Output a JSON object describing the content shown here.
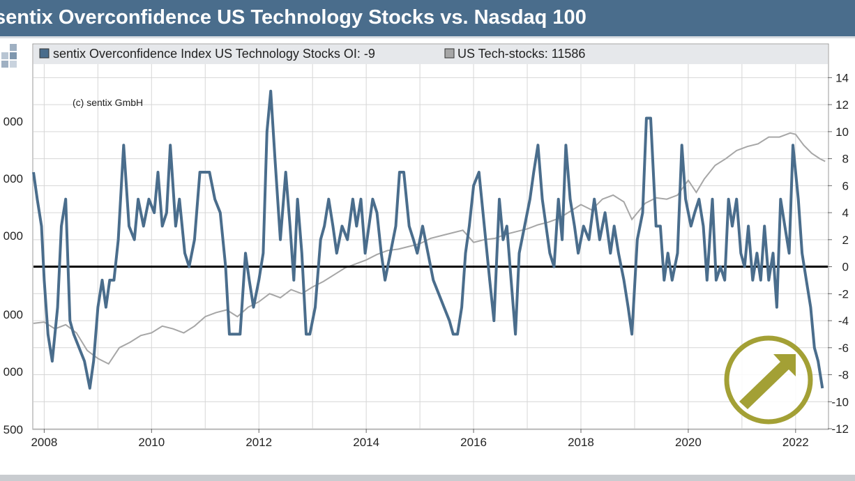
{
  "title": "sentix Overconfidence US Technology Stocks vs. Nasdaq 100",
  "copyright": "(c) sentix GmbH",
  "legend": [
    {
      "label": "sentix Overconfidence Index US Technology Stocks OI: -9",
      "color": "#4a6d8c"
    },
    {
      "label": "US Tech-stocks: 11586",
      "color": "#a6a6a6"
    }
  ],
  "colors": {
    "title_bg": "#4a6d8c",
    "oi_line": "#4a6d8c",
    "tech_line": "#a6a6a6",
    "zero_line": "#000000",
    "arrow": "#a3a035"
  },
  "icon_names": [
    "logo-squares-icon",
    "arrow-circle-icon"
  ],
  "chart_data": {
    "type": "line",
    "x_ticks": [
      "2008",
      "2010",
      "2012",
      "2014",
      "2016",
      "2018",
      "2020",
      "2022"
    ],
    "xlim": [
      2007.8,
      2022.6
    ],
    "y_right_ticks": [
      "14",
      "12",
      "10",
      "8",
      "6",
      "4",
      "2",
      "0",
      "-2",
      "-4",
      "-6",
      "-8",
      "-10",
      "-12"
    ],
    "y_right_lim": [
      -12,
      15
    ],
    "y_left_ticks": [
      "000",
      "000",
      "000",
      "000",
      "000",
      "500"
    ],
    "grid": true,
    "legend_position": "top",
    "series": [
      {
        "name": "sentix Overconfidence Index US Technology Stocks OI",
        "axis": "right",
        "points": [
          [
            2007.8,
            7
          ],
          [
            2007.87,
            5
          ],
          [
            2007.95,
            3
          ],
          [
            2008.0,
            -1
          ],
          [
            2008.07,
            -5
          ],
          [
            2008.15,
            -7
          ],
          [
            2008.25,
            -3
          ],
          [
            2008.32,
            3
          ],
          [
            2008.4,
            5
          ],
          [
            2008.48,
            -4
          ],
          [
            2008.55,
            -5
          ],
          [
            2008.65,
            -6
          ],
          [
            2008.75,
            -7
          ],
          [
            2008.85,
            -9
          ],
          [
            2008.92,
            -7
          ],
          [
            2009.0,
            -3
          ],
          [
            2009.08,
            -1
          ],
          [
            2009.15,
            -3
          ],
          [
            2009.22,
            -1
          ],
          [
            2009.3,
            -1
          ],
          [
            2009.38,
            2
          ],
          [
            2009.48,
            9
          ],
          [
            2009.58,
            3
          ],
          [
            2009.68,
            2
          ],
          [
            2009.75,
            5
          ],
          [
            2009.85,
            3
          ],
          [
            2009.95,
            5
          ],
          [
            2010.05,
            4
          ],
          [
            2010.12,
            7
          ],
          [
            2010.2,
            3
          ],
          [
            2010.28,
            4
          ],
          [
            2010.35,
            9
          ],
          [
            2010.45,
            3
          ],
          [
            2010.52,
            5
          ],
          [
            2010.62,
            1
          ],
          [
            2010.7,
            0
          ],
          [
            2010.8,
            2
          ],
          [
            2010.9,
            7
          ],
          [
            2011.0,
            7
          ],
          [
            2011.08,
            7
          ],
          [
            2011.18,
            5
          ],
          [
            2011.28,
            4
          ],
          [
            2011.38,
            0
          ],
          [
            2011.45,
            -5
          ],
          [
            2011.55,
            -5
          ],
          [
            2011.65,
            -5
          ],
          [
            2011.75,
            1
          ],
          [
            2011.82,
            -1
          ],
          [
            2011.9,
            -3
          ],
          [
            2012.0,
            -1
          ],
          [
            2012.08,
            1
          ],
          [
            2012.15,
            10
          ],
          [
            2012.22,
            13
          ],
          [
            2012.3,
            8
          ],
          [
            2012.4,
            2
          ],
          [
            2012.5,
            7
          ],
          [
            2012.58,
            3
          ],
          [
            2012.65,
            -1
          ],
          [
            2012.72,
            5
          ],
          [
            2012.8,
            1
          ],
          [
            2012.88,
            -5
          ],
          [
            2012.95,
            -5
          ],
          [
            2013.05,
            -3
          ],
          [
            2013.15,
            2
          ],
          [
            2013.22,
            3
          ],
          [
            2013.3,
            5
          ],
          [
            2013.38,
            3
          ],
          [
            2013.45,
            1
          ],
          [
            2013.55,
            3
          ],
          [
            2013.65,
            2
          ],
          [
            2013.75,
            5
          ],
          [
            2013.82,
            3
          ],
          [
            2013.9,
            5
          ],
          [
            2013.98,
            1
          ],
          [
            2014.05,
            3
          ],
          [
            2014.12,
            5
          ],
          [
            2014.2,
            4
          ],
          [
            2014.28,
            1
          ],
          [
            2014.35,
            -1
          ],
          [
            2014.45,
            1
          ],
          [
            2014.55,
            3
          ],
          [
            2014.62,
            7
          ],
          [
            2014.7,
            7
          ],
          [
            2014.8,
            3
          ],
          [
            2014.88,
            2
          ],
          [
            2014.95,
            1
          ],
          [
            2015.05,
            3
          ],
          [
            2015.15,
            1
          ],
          [
            2015.25,
            -1
          ],
          [
            2015.35,
            -2
          ],
          [
            2015.45,
            -3
          ],
          [
            2015.55,
            -4
          ],
          [
            2015.62,
            -5
          ],
          [
            2015.7,
            -5
          ],
          [
            2015.78,
            -3
          ],
          [
            2015.85,
            1
          ],
          [
            2015.92,
            3
          ],
          [
            2016.0,
            6
          ],
          [
            2016.1,
            7
          ],
          [
            2016.2,
            3
          ],
          [
            2016.3,
            -1
          ],
          [
            2016.38,
            -4
          ],
          [
            2016.48,
            5
          ],
          [
            2016.55,
            2
          ],
          [
            2016.62,
            3
          ],
          [
            2016.7,
            -1
          ],
          [
            2016.78,
            -5
          ],
          [
            2016.85,
            1
          ],
          [
            2016.95,
            3
          ],
          [
            2017.05,
            5
          ],
          [
            2017.12,
            7
          ],
          [
            2017.2,
            9
          ],
          [
            2017.28,
            5
          ],
          [
            2017.35,
            3
          ],
          [
            2017.42,
            1
          ],
          [
            2017.5,
            0
          ],
          [
            2017.58,
            5
          ],
          [
            2017.65,
            2
          ],
          [
            2017.72,
            9
          ],
          [
            2017.8,
            5
          ],
          [
            2017.88,
            3
          ],
          [
            2017.95,
            1
          ],
          [
            2018.05,
            3
          ],
          [
            2018.15,
            2
          ],
          [
            2018.25,
            5
          ],
          [
            2018.35,
            2
          ],
          [
            2018.45,
            4
          ],
          [
            2018.55,
            1
          ],
          [
            2018.62,
            3
          ],
          [
            2018.7,
            1
          ],
          [
            2018.8,
            -1
          ],
          [
            2018.88,
            -3
          ],
          [
            2018.95,
            -5
          ],
          [
            2019.05,
            2
          ],
          [
            2019.15,
            4
          ],
          [
            2019.22,
            11
          ],
          [
            2019.3,
            11
          ],
          [
            2019.4,
            3
          ],
          [
            2019.48,
            3
          ],
          [
            2019.55,
            -1
          ],
          [
            2019.62,
            1
          ],
          [
            2019.7,
            -1
          ],
          [
            2019.8,
            1
          ],
          [
            2019.88,
            9
          ],
          [
            2019.95,
            5
          ],
          [
            2020.05,
            3
          ],
          [
            2020.12,
            4
          ],
          [
            2020.2,
            5
          ],
          [
            2020.28,
            3
          ],
          [
            2020.35,
            -1
          ],
          [
            2020.45,
            5
          ],
          [
            2020.52,
            -1
          ],
          [
            2020.6,
            0
          ],
          [
            2020.68,
            -1
          ],
          [
            2020.75,
            5
          ],
          [
            2020.82,
            3
          ],
          [
            2020.9,
            5
          ],
          [
            2020.98,
            1
          ],
          [
            2021.05,
            0
          ],
          [
            2021.12,
            3
          ],
          [
            2021.2,
            -1
          ],
          [
            2021.28,
            1
          ],
          [
            2021.35,
            -1
          ],
          [
            2021.42,
            3
          ],
          [
            2021.5,
            -1
          ],
          [
            2021.58,
            1
          ],
          [
            2021.65,
            -3
          ],
          [
            2021.72,
            5
          ],
          [
            2021.8,
            3
          ],
          [
            2021.88,
            1
          ],
          [
            2021.95,
            9
          ],
          [
            2022.05,
            5
          ],
          [
            2022.12,
            1
          ],
          [
            2022.2,
            -1
          ],
          [
            2022.28,
            -3
          ],
          [
            2022.35,
            -6
          ],
          [
            2022.42,
            -7
          ],
          [
            2022.5,
            -9
          ]
        ]
      },
      {
        "name": "US Tech-stocks",
        "axis": "left",
        "points": [
          [
            2007.8,
            -4.2
          ],
          [
            2008.0,
            -4.1
          ],
          [
            2008.2,
            -4.6
          ],
          [
            2008.4,
            -4.3
          ],
          [
            2008.6,
            -4.9
          ],
          [
            2008.8,
            -6.2
          ],
          [
            2009.0,
            -6.8
          ],
          [
            2009.2,
            -7.2
          ],
          [
            2009.4,
            -6.0
          ],
          [
            2009.6,
            -5.6
          ],
          [
            2009.8,
            -5.1
          ],
          [
            2010.0,
            -4.9
          ],
          [
            2010.2,
            -4.4
          ],
          [
            2010.4,
            -4.6
          ],
          [
            2010.6,
            -4.9
          ],
          [
            2010.8,
            -4.4
          ],
          [
            2011.0,
            -3.7
          ],
          [
            2011.2,
            -3.4
          ],
          [
            2011.4,
            -3.2
          ],
          [
            2011.6,
            -3.7
          ],
          [
            2011.8,
            -3.0
          ],
          [
            2012.0,
            -2.6
          ],
          [
            2012.2,
            -2.0
          ],
          [
            2012.4,
            -2.3
          ],
          [
            2012.6,
            -1.7
          ],
          [
            2012.8,
            -2.0
          ],
          [
            2013.0,
            -1.5
          ],
          [
            2013.2,
            -1.1
          ],
          [
            2013.4,
            -0.6
          ],
          [
            2013.6,
            -0.1
          ],
          [
            2013.8,
            0.2
          ],
          [
            2014.0,
            0.5
          ],
          [
            2014.2,
            0.9
          ],
          [
            2014.4,
            1.2
          ],
          [
            2014.6,
            1.3
          ],
          [
            2014.8,
            1.5
          ],
          [
            2015.0,
            1.7
          ],
          [
            2015.2,
            2.1
          ],
          [
            2015.4,
            2.3
          ],
          [
            2015.6,
            2.5
          ],
          [
            2015.8,
            2.7
          ],
          [
            2016.0,
            1.8
          ],
          [
            2016.2,
            2.0
          ],
          [
            2016.4,
            2.1
          ],
          [
            2016.6,
            2.4
          ],
          [
            2016.8,
            2.6
          ],
          [
            2017.0,
            2.8
          ],
          [
            2017.2,
            3.1
          ],
          [
            2017.4,
            3.3
          ],
          [
            2017.6,
            3.6
          ],
          [
            2017.8,
            4.1
          ],
          [
            2018.0,
            4.6
          ],
          [
            2018.2,
            4.2
          ],
          [
            2018.4,
            5.0
          ],
          [
            2018.6,
            5.3
          ],
          [
            2018.8,
            4.8
          ],
          [
            2018.95,
            3.5
          ],
          [
            2019.2,
            4.7
          ],
          [
            2019.4,
            5.1
          ],
          [
            2019.6,
            5.0
          ],
          [
            2019.8,
            5.3
          ],
          [
            2020.0,
            6.4
          ],
          [
            2020.15,
            5.5
          ],
          [
            2020.3,
            6.5
          ],
          [
            2020.5,
            7.5
          ],
          [
            2020.7,
            8.0
          ],
          [
            2020.9,
            8.6
          ],
          [
            2021.1,
            8.9
          ],
          [
            2021.3,
            9.1
          ],
          [
            2021.5,
            9.6
          ],
          [
            2021.7,
            9.6
          ],
          [
            2021.9,
            9.9
          ],
          [
            2022.0,
            9.8
          ],
          [
            2022.15,
            9.0
          ],
          [
            2022.3,
            8.4
          ],
          [
            2022.45,
            8.0
          ],
          [
            2022.55,
            7.8
          ]
        ]
      }
    ]
  }
}
